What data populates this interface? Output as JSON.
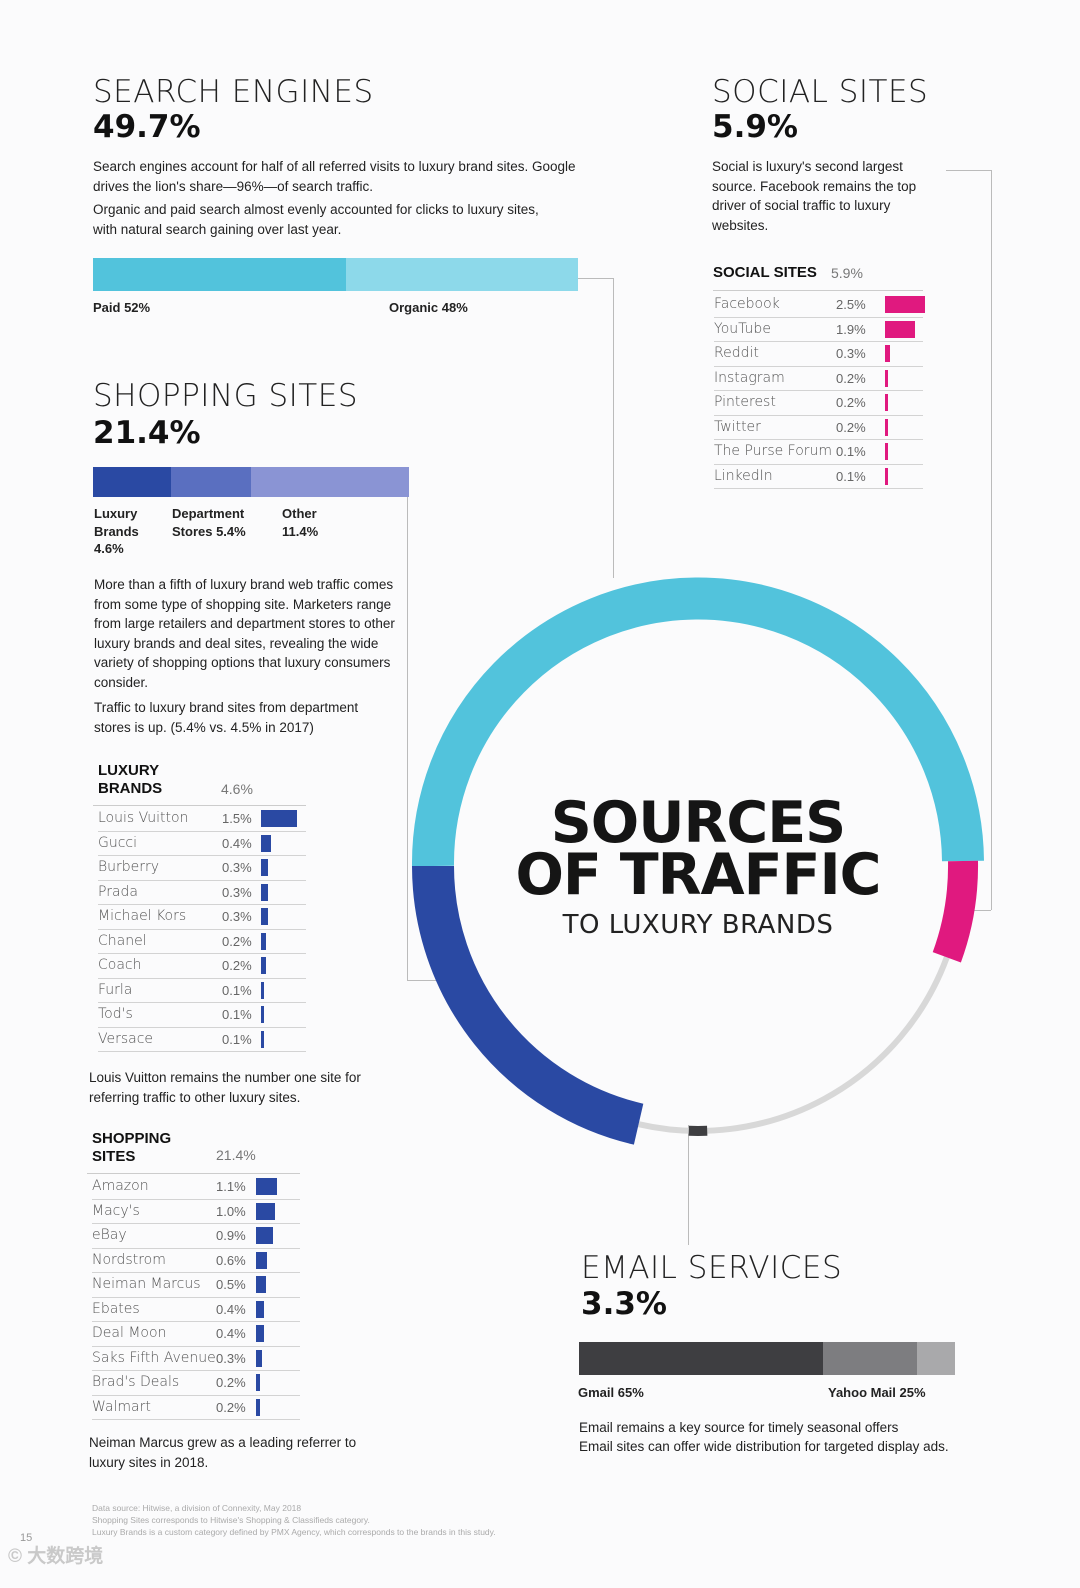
{
  "search": {
    "title": "SEARCH ENGINES",
    "pct": "49.7%",
    "p1": "Search engines account for half of all referred visits to luxury brand sites. Google drives the lion's share—96%—of search traffic.",
    "p2": "Organic and paid search almost evenly accounted for clicks to luxury sites, with natural search gaining over last year.",
    "paid_label": "Paid 52%",
    "organic_label": "Organic 48%"
  },
  "social": {
    "title": "SOCIAL SITES",
    "pct": "5.9%",
    "desc": "Social is luxury's second largest source. Facebook remains the top driver of social traffic to luxury websites.",
    "table_title": "SOCIAL SITES",
    "table_total": "5.9%"
  },
  "shopping": {
    "title": "SHOPPING SITES",
    "pct": "21.4%",
    "seg_luxury": "Luxury Brands 4.6%",
    "seg_dept": "Department Stores 5.4%",
    "seg_other": "Other 11.4%",
    "p1": "More than a fifth of luxury brand web traffic comes from some type of shopping site. Marketers range from large retailers and department stores to other luxury brands and deal sites, revealing the wide variety of shopping options that luxury consumers consider.",
    "p2": "Traffic to luxury brand sites from department stores is up. (5.4% vs. 4.5% in 2017)"
  },
  "luxury": {
    "table_title": "LUXURY BRANDS",
    "table_total": "4.6%",
    "note": "Louis Vuitton remains the number one site for referring traffic to other luxury sites."
  },
  "shoptable": {
    "table_title": "SHOPPING SITES",
    "table_total": "21.4%",
    "note": "Neiman Marcus grew as a leading referrer to luxury sites in 2018."
  },
  "center": {
    "line1": "SOURCES",
    "line2": "OF TRAFFIC",
    "line3": "TO LUXURY BRANDS"
  },
  "email": {
    "title": "EMAIL SERVICES",
    "pct": "3.3%",
    "gmail_label": "Gmail 65%",
    "yahoo_label": "Yahoo Mail 25%",
    "p1": "Email remains a key source for timely seasonal offers",
    "p2": "Email sites can offer wide distribution for targeted display ads."
  },
  "footer": {
    "l1": "Data source: Hitwise, a division of Connexity, May 2018",
    "l2": "Shopping Sites corresponds to Hitwise's Shopping & Classifieds category.",
    "l3": "Luxury Brands is a custom category defined by PMX Agency, which corresponds to the brands in this study.",
    "page": "15",
    "watermark": "© 大数跨境"
  },
  "colors": {
    "cyan": "#52c3dc",
    "cyan_light": "#8dd9ea",
    "navy": "#2a49a3",
    "blue_mid": "#5a6fc0",
    "lavender": "#8a94d4",
    "magenta": "#e0197f",
    "gray_ring": "#d8d8d8",
    "dark": "#3e3e41",
    "mid": "#7d7d80",
    "light": "#a9a9ab"
  },
  "chart_data": [
    {
      "type": "pie",
      "title": "SOURCES OF TRAFFIC TO LUXURY BRANDS",
      "categories": [
        "Search Engines",
        "Shopping Sites",
        "Social Sites",
        "Email Services",
        "Other"
      ],
      "values": [
        49.7,
        21.4,
        5.9,
        3.3,
        19.7
      ]
    },
    {
      "type": "bar",
      "title": "Search Engines",
      "categories": [
        "Paid",
        "Organic"
      ],
      "values": [
        52,
        48
      ]
    },
    {
      "type": "bar",
      "title": "Shopping Sites",
      "categories": [
        "Luxury Brands",
        "Department Stores",
        "Other"
      ],
      "values": [
        4.6,
        5.4,
        11.4
      ]
    },
    {
      "type": "bar",
      "title": "SOCIAL SITES",
      "categories": [
        "Facebook",
        "YouTube",
        "Reddit",
        "Instagram",
        "Pinterest",
        "Twitter",
        "The Purse Forum",
        "LinkedIn"
      ],
      "values": [
        2.5,
        1.9,
        0.3,
        0.2,
        0.2,
        0.2,
        0.1,
        0.1
      ],
      "labels": [
        "2.5%",
        "1.9%",
        "0.3%",
        "0.2%",
        "0.2%",
        "0.2%",
        "0.1%",
        "0.1%"
      ]
    },
    {
      "type": "bar",
      "title": "LUXURY BRANDS",
      "categories": [
        "Louis Vuitton",
        "Gucci",
        "Burberry",
        "Prada",
        "Michael Kors",
        "Chanel",
        "Coach",
        "Furla",
        "Tod's",
        "Versace"
      ],
      "values": [
        1.5,
        0.4,
        0.3,
        0.3,
        0.3,
        0.2,
        0.2,
        0.1,
        0.1,
        0.1
      ],
      "labels": [
        "1.5%",
        "0.4%",
        "0.3%",
        "0.3%",
        "0.3%",
        "0.2%",
        "0.2%",
        "0.1%",
        "0.1%",
        "0.1%"
      ]
    },
    {
      "type": "bar",
      "title": "SHOPPING SITES",
      "categories": [
        "Amazon",
        "Macy's",
        "eBay",
        "Nordstrom",
        "Neiman Marcus",
        "Ebates",
        "Deal Moon",
        "Saks Fifth Avenue",
        "Brad's Deals",
        "Walmart"
      ],
      "values": [
        1.1,
        1.0,
        0.9,
        0.6,
        0.5,
        0.4,
        0.4,
        0.3,
        0.2,
        0.2
      ],
      "labels": [
        "1.1%",
        "1.0%",
        "0.9%",
        "0.6%",
        "0.5%",
        "0.4%",
        "0.4%",
        "0.3%",
        "0.2%",
        "0.2%"
      ]
    },
    {
      "type": "bar",
      "title": "Email Services",
      "categories": [
        "Gmail",
        "Yahoo Mail",
        "Other"
      ],
      "values": [
        65,
        25,
        10
      ]
    }
  ]
}
